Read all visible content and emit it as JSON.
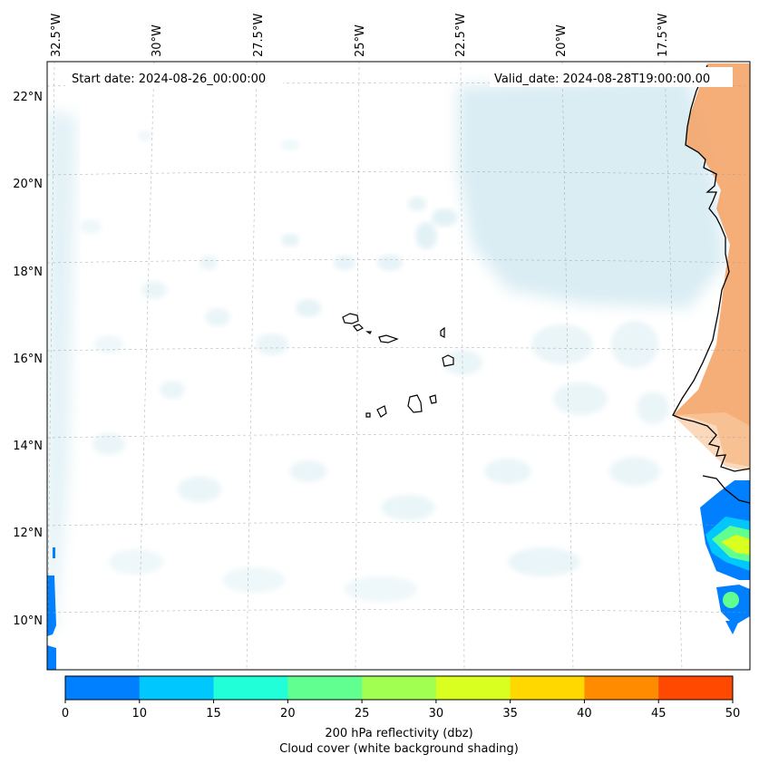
{
  "map": {
    "start_date": "Start date: 2024-08-26_00:00:00",
    "valid_date": "Valid_date: 2024-08-28T19:00:00.00",
    "lon_labels": [
      "32.5°W",
      "30°W",
      "27.5°W",
      "25°W",
      "22.5°W",
      "20°W",
      "17.5°W"
    ],
    "lat_labels": [
      "22°N",
      "20°N",
      "18°N",
      "16°N",
      "14°N",
      "12°N",
      "10°N"
    ],
    "region": {
      "lon_range": [
        -33,
        -15.5
      ],
      "lat_range": [
        9,
        23
      ]
    },
    "features": [
      "Cape Verde islands",
      "West African coastline (Mauritania, Senegal, Guinea-Bissau)"
    ],
    "land_shading_color": "#f4a060",
    "cloud_shading_color": "#add8e6"
  },
  "colorbar": {
    "label_line1": "200 hPa reflectivity (dbz)",
    "label_line2": "Cloud cover (white background shading)",
    "ticks": [
      "0",
      "10",
      "15",
      "20",
      "25",
      "30",
      "35",
      "40",
      "45",
      "50"
    ],
    "colors": [
      "#0080ff",
      "#00c8ff",
      "#20ffd8",
      "#60ff90",
      "#a0ff50",
      "#d8ff20",
      "#ffd800",
      "#ff8c00",
      "#ff4800"
    ]
  }
}
